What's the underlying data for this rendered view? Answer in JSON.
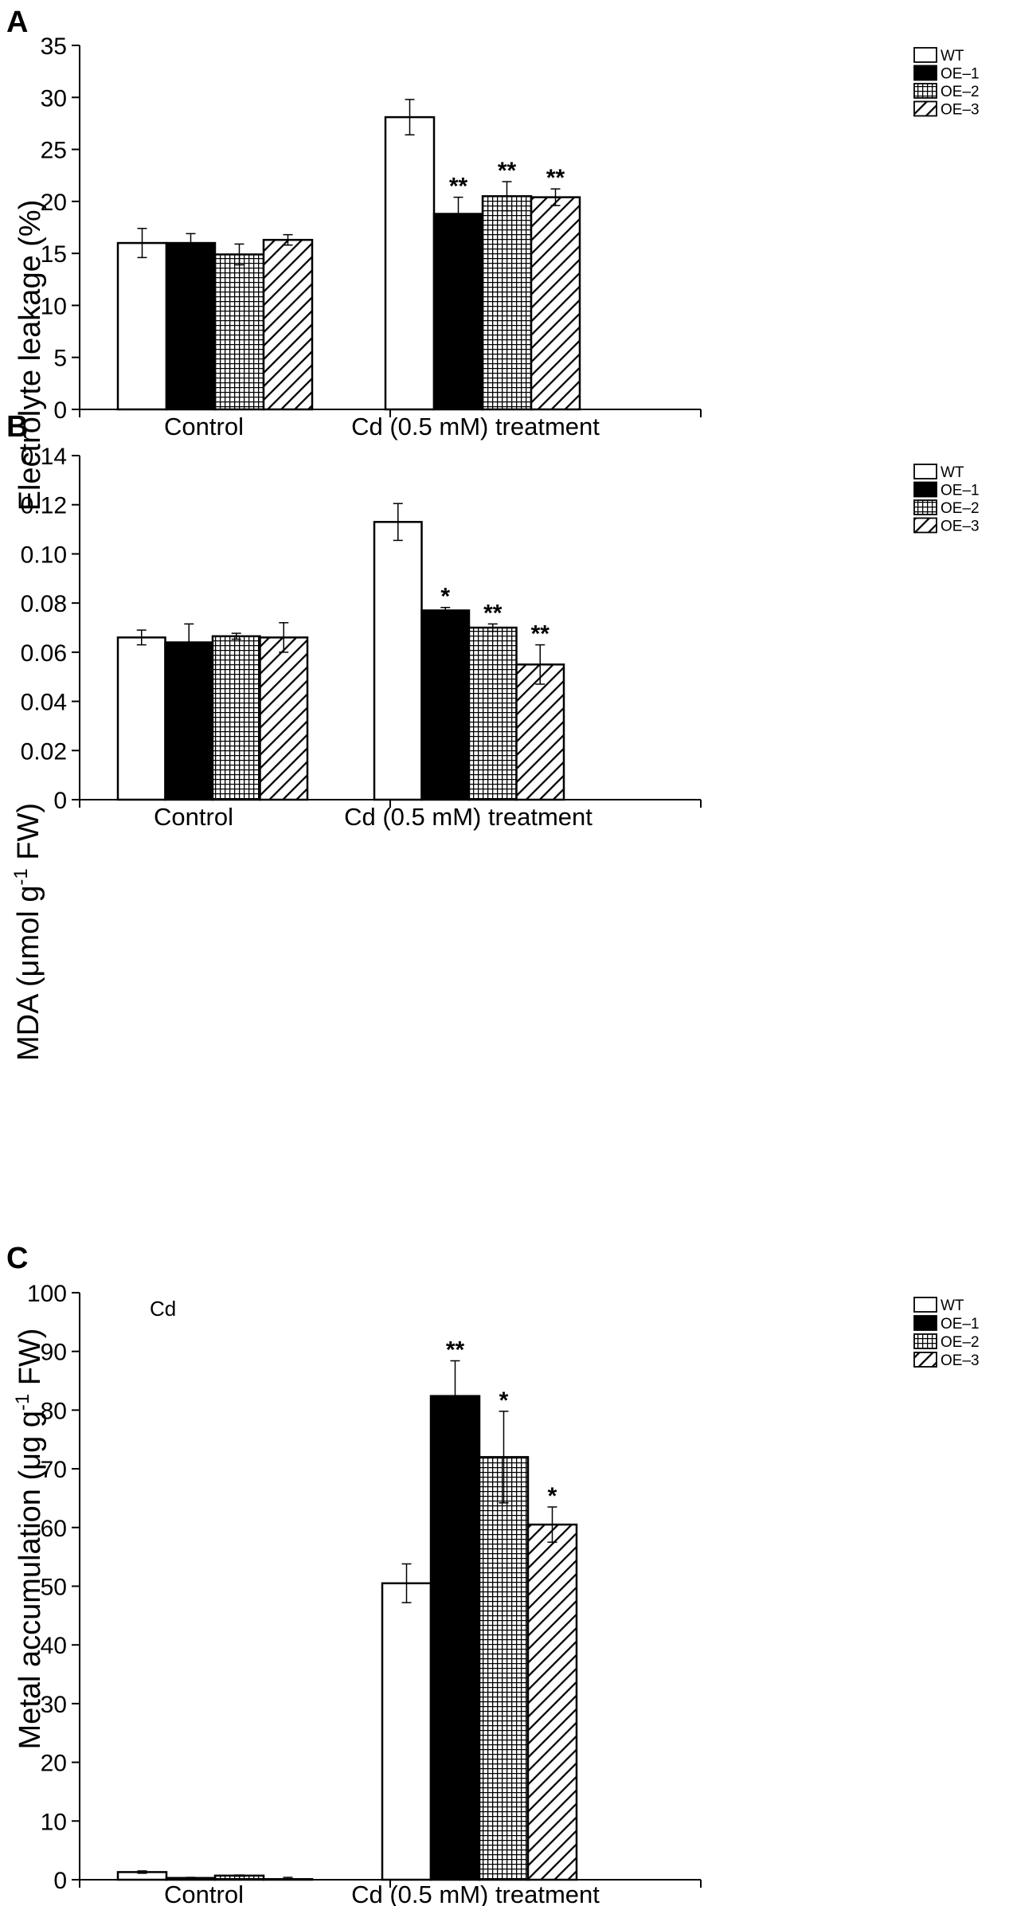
{
  "chart_data": [
    {
      "type": "bar",
      "panel": "A",
      "ylabel": "Electrolyte leakage (%)",
      "ylim": [
        0,
        35
      ],
      "yticks": [
        "0",
        "5",
        "10",
        "15",
        "20",
        "25",
        "30",
        "35"
      ],
      "categories": [
        "Control",
        "Cd (0.5 mM) treatment"
      ],
      "legend": [
        "WT",
        "OE-1",
        "OE-2",
        "OE-3"
      ],
      "legend_labels": [
        "WT",
        "OE–1",
        "OE–2",
        "OE–3"
      ],
      "series": [
        {
          "name": "WT",
          "values": [
            16.0,
            28.1
          ],
          "errors": [
            1.4,
            1.7
          ],
          "significance": [
            "",
            ""
          ]
        },
        {
          "name": "OE-1",
          "values": [
            16.0,
            18.8
          ],
          "errors": [
            0.9,
            1.6
          ],
          "significance": [
            "",
            "**"
          ]
        },
        {
          "name": "OE-2",
          "values": [
            14.9,
            20.5
          ],
          "errors": [
            1.0,
            1.4
          ],
          "significance": [
            "",
            "**"
          ]
        },
        {
          "name": "OE-3",
          "values": [
            16.3,
            20.4
          ],
          "errors": [
            0.5,
            0.8
          ],
          "significance": [
            "",
            "**"
          ]
        }
      ]
    },
    {
      "type": "bar",
      "panel": "B",
      "ylabel": "MDA (μmol g-1 FW)",
      "ylabel_parts": [
        "MDA (μmol g",
        "-1",
        " FW)"
      ],
      "ylim": [
        0,
        0.14
      ],
      "yticks": [
        "0",
        "0.02",
        "0.04",
        "0.06",
        "0.08",
        "0.10",
        "0.12",
        "0.14"
      ],
      "categories": [
        "Control",
        "Cd (0.5 mM) treatment"
      ],
      "legend": [
        "WT",
        "OE-1",
        "OE-2",
        "OE-3"
      ],
      "legend_labels": [
        "WT",
        "OE–1",
        "OE–2",
        "OE–3"
      ],
      "series": [
        {
          "name": "WT",
          "values": [
            0.066,
            0.113
          ],
          "errors": [
            0.003,
            0.0075
          ],
          "significance": [
            "",
            ""
          ]
        },
        {
          "name": "OE-1",
          "values": [
            0.064,
            0.077
          ],
          "errors": [
            0.0075,
            0.0012
          ],
          "significance": [
            "",
            "*"
          ]
        },
        {
          "name": "OE-2",
          "values": [
            0.0665,
            0.07
          ],
          "errors": [
            0.0012,
            0.0015
          ],
          "significance": [
            "",
            "**"
          ]
        },
        {
          "name": "OE-3",
          "values": [
            0.066,
            0.055
          ],
          "errors": [
            0.006,
            0.008
          ],
          "significance": [
            "",
            "**"
          ]
        }
      ]
    },
    {
      "type": "bar",
      "panel": "C",
      "ylabel": "Metal accumulation (μg g-1 FW)",
      "ylabel_parts": [
        "Metal accumulation (μg g",
        "-1",
        " FW)"
      ],
      "annotation": "Cd",
      "ylim": [
        0,
        100
      ],
      "yticks": [
        "0",
        "10",
        "20",
        "30",
        "40",
        "50",
        "60",
        "70",
        "80",
        "90",
        "100"
      ],
      "categories": [
        "Control",
        "Cd (0.5 mM) treatment"
      ],
      "legend": [
        "WT",
        "OE-1",
        "OE-2",
        "OE-3"
      ],
      "legend_labels": [
        "WT",
        "OE–1",
        "OE–2",
        "OE–3"
      ],
      "series": [
        {
          "name": "WT",
          "values": [
            1.3,
            50.5
          ],
          "errors": [
            0.2,
            3.3
          ],
          "significance": [
            "",
            ""
          ]
        },
        {
          "name": "OE-1",
          "values": [
            0.3,
            82.4
          ],
          "errors": [
            0.1,
            6.0
          ],
          "significance": [
            "",
            "**"
          ]
        },
        {
          "name": "OE-2",
          "values": [
            0.7,
            72.0
          ],
          "errors": [
            0.1,
            7.8
          ],
          "significance": [
            "",
            "*"
          ]
        },
        {
          "name": "OE-3",
          "values": [
            0.1,
            60.5
          ],
          "errors": [
            0.3,
            3.0
          ],
          "significance": [
            "",
            "*"
          ]
        }
      ]
    }
  ]
}
